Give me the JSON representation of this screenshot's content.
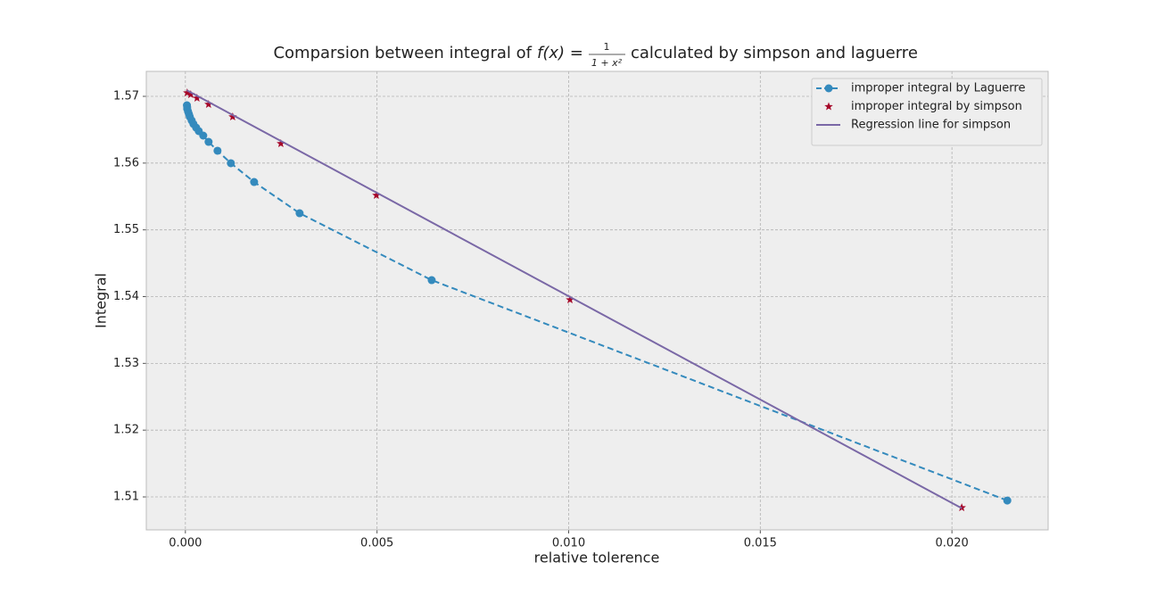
{
  "chart_data": {
    "type": "line",
    "title": "Comparsion between integral of",
    "title_formula": {
      "lhs": "f(x) =",
      "numerator": "1",
      "denominator": "1 + x²"
    },
    "title_end": "calculated by simpson and laguerre",
    "x_label": "relative tolerence",
    "y_label": "Integral",
    "xlim": [
      -0.00102,
      0.02251
    ],
    "ylim": [
      1.50506,
      1.57374
    ],
    "xticks": [
      {
        "value": 0,
        "label": "0.000"
      },
      {
        "value": 0.005,
        "label": "0.005"
      },
      {
        "value": 0.01,
        "label": "0.010"
      },
      {
        "value": 0.015,
        "label": "0.015"
      },
      {
        "value": 0.02,
        "label": "0.020"
      }
    ],
    "yticks": [
      1.51,
      1.52,
      1.53,
      1.54,
      1.55,
      1.56,
      1.57
    ],
    "grid": true,
    "legend": "upper right",
    "series": [
      {
        "name": "improper integral by Laguerre",
        "color": "#348abd",
        "kind": "dashed-line-markers",
        "x": [
          0.021444,
          0.006426,
          0.00298,
          0.001793,
          0.001187,
          0.000838,
          0.000605,
          0.000466,
          0.000349,
          0.00028,
          0.00021,
          0.000163,
          0.000116,
          9.3e-05,
          7e-05,
          4.7e-05,
          4.7e-05,
          4e-05
        ],
        "values": [
          1.50946,
          1.54247,
          1.55249,
          1.55717,
          1.55998,
          1.56185,
          1.56318,
          1.56412,
          1.56479,
          1.56532,
          1.56586,
          1.56639,
          1.56693,
          1.56733,
          1.56773,
          1.56813,
          1.5684,
          1.56866
        ]
      },
      {
        "name": "improper integral by simpson",
        "color": "#a60628",
        "kind": "star-markers",
        "x": [
          0.020256,
          0.010035,
          0.004983,
          0.002491,
          0.001234,
          0.000605,
          0.000303,
          0.00014,
          4.7e-05
        ],
        "values": [
          1.50839,
          1.53953,
          1.55517,
          1.56292,
          1.56693,
          1.5688,
          1.56973,
          1.57027,
          1.57053
        ]
      },
      {
        "name": "Regression line for simpson",
        "color": "#7a68a6",
        "kind": "solid-line",
        "x": [
          4e-05,
          0.020256
        ],
        "values": [
          1.5709,
          1.5083
        ]
      }
    ]
  }
}
